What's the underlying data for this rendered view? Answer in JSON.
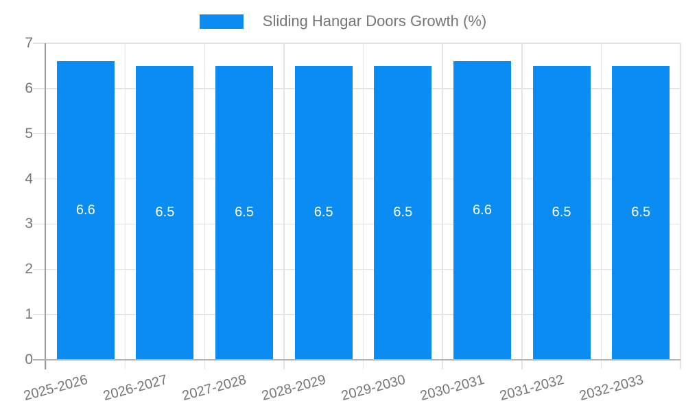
{
  "chart_data": {
    "type": "bar",
    "title": "Sliding Hangar Doors Growth (%)",
    "legend": {
      "position": "top",
      "label": "Sliding Hangar Doors Growth (%)"
    },
    "categories": [
      "2025-2026",
      "2026-2027",
      "2027-2028",
      "2028-2029",
      "2029-2030",
      "2030-2031",
      "2031-2032",
      "2032-2033"
    ],
    "values": [
      6.6,
      6.5,
      6.5,
      6.5,
      6.5,
      6.6,
      6.5,
      6.5
    ],
    "bar_value_labels": [
      "6.6",
      "6.5",
      "6.5",
      "6.5",
      "6.5",
      "6.6",
      "6.5",
      "6.5"
    ],
    "xlabel": "",
    "ylabel": "",
    "ylim": [
      0,
      7
    ],
    "yticks": [
      0,
      1,
      2,
      3,
      4,
      5,
      6,
      7
    ],
    "ytick_labels": [
      "0",
      "1",
      "2",
      "3",
      "4",
      "5",
      "6",
      "7"
    ],
    "x_tick_label_rotation_deg": -15,
    "grid": true,
    "colors": {
      "bar": "#0A8CF2",
      "bar_label": "#FFFFFF",
      "axis_label": "#757575",
      "gridline": "#E4E4E4",
      "axis_line_y": "#9A9A9A",
      "axis_line_x": "#B3B3B3",
      "background": "#FFFFFF"
    }
  }
}
